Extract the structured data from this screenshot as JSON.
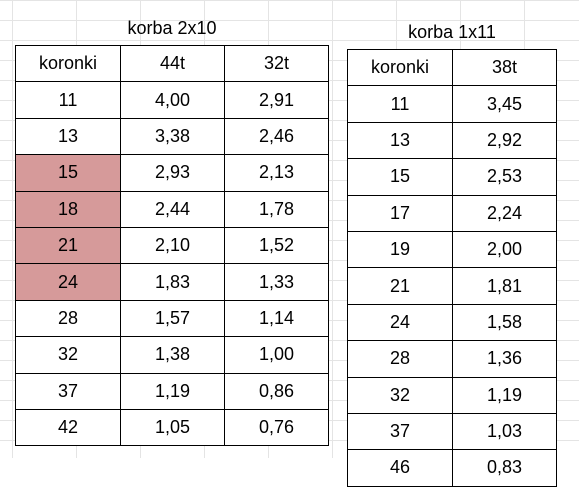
{
  "table1": {
    "title": "korba 2x10",
    "headers": [
      "koronki",
      "44t",
      "32t"
    ],
    "rows": [
      [
        "11",
        "4,00",
        "2,91"
      ],
      [
        "13",
        "3,38",
        "2,46"
      ],
      [
        "15",
        "2,93",
        "2,13"
      ],
      [
        "18",
        "2,44",
        "1,78"
      ],
      [
        "21",
        "2,10",
        "1,52"
      ],
      [
        "24",
        "1,83",
        "1,33"
      ],
      [
        "28",
        "1,57",
        "1,14"
      ],
      [
        "32",
        "1,38",
        "1,00"
      ],
      [
        "37",
        "1,19",
        "0,86"
      ],
      [
        "42",
        "1,05",
        "0,76"
      ]
    ],
    "highlighted_rows": [
      2,
      3,
      4,
      5
    ],
    "highlight_color": "#d69a9a"
  },
  "table2": {
    "title": "korba 1x11",
    "headers": [
      "koronki",
      "38t"
    ],
    "rows": [
      [
        "11",
        "3,45"
      ],
      [
        "13",
        "2,92"
      ],
      [
        "15",
        "2,53"
      ],
      [
        "17",
        "2,24"
      ],
      [
        "19",
        "2,00"
      ],
      [
        "21",
        "1,81"
      ],
      [
        "24",
        "1,58"
      ],
      [
        "28",
        "1,36"
      ],
      [
        "32",
        "1,19"
      ],
      [
        "37",
        "1,03"
      ],
      [
        "46",
        "0,83"
      ]
    ]
  }
}
